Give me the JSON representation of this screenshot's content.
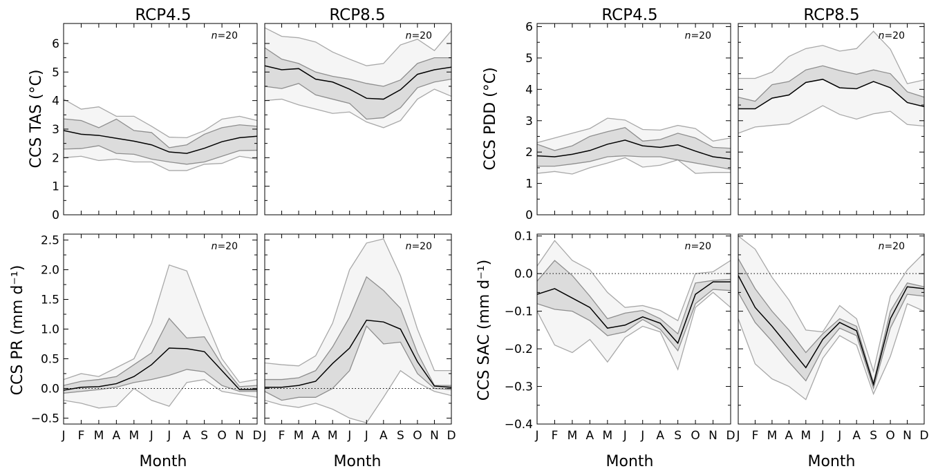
{
  "chart_data": [
    {
      "type": "line",
      "panel": "TAS RCP4.5",
      "title": "RCP4.5",
      "ylabel": "CCS TAS (°C)",
      "xlabel": "",
      "n_label": "n=20",
      "categories": [
        "J",
        "F",
        "M",
        "A",
        "M",
        "J",
        "J",
        "A",
        "S",
        "O",
        "N",
        "D"
      ],
      "ylim": [
        0,
        6.7
      ],
      "yticks": [
        0,
        1,
        2,
        3,
        4,
        5,
        6
      ],
      "ytick_labels": [
        "0",
        "1",
        "2",
        "3",
        "4",
        "5",
        "6"
      ],
      "hline": null,
      "series": [
        {
          "role": "median",
          "values": [
            2.95,
            2.82,
            2.78,
            2.68,
            2.58,
            2.45,
            2.2,
            2.15,
            2.33,
            2.56,
            2.7,
            2.75
          ]
        },
        {
          "role": "inner_band",
          "upper": [
            3.36,
            3.3,
            3.05,
            3.35,
            2.95,
            2.88,
            2.35,
            2.45,
            2.82,
            3.05,
            3.15,
            3.1
          ],
          "lower": [
            2.3,
            2.32,
            2.42,
            2.15,
            2.12,
            1.95,
            1.85,
            1.77,
            1.85,
            2.05,
            2.25,
            2.26
          ]
        },
        {
          "role": "outer_band",
          "upper": [
            4.05,
            3.7,
            3.78,
            3.45,
            3.45,
            3.1,
            2.72,
            2.7,
            2.95,
            3.35,
            3.45,
            3.3
          ],
          "lower": [
            2.0,
            2.05,
            1.9,
            1.95,
            1.85,
            1.85,
            1.55,
            1.55,
            1.77,
            1.8,
            2.05,
            1.95
          ]
        }
      ]
    },
    {
      "type": "line",
      "panel": "TAS RCP8.5",
      "title": "RCP8.5",
      "ylabel": "",
      "xlabel": "",
      "n_label": "n=20",
      "categories": [
        "J",
        "F",
        "M",
        "A",
        "M",
        "J",
        "J",
        "A",
        "S",
        "O",
        "N",
        "D"
      ],
      "ylim": [
        0,
        6.7
      ],
      "yticks": [
        0,
        1,
        2,
        3,
        4,
        5,
        6
      ],
      "ytick_labels": [],
      "hline": null,
      "series": [
        {
          "role": "median",
          "values": [
            5.22,
            5.08,
            5.12,
            4.75,
            4.65,
            4.4,
            4.08,
            4.05,
            4.38,
            4.92,
            5.08,
            5.17
          ]
        },
        {
          "role": "inner_band",
          "upper": [
            5.85,
            5.45,
            5.3,
            5.0,
            4.85,
            4.75,
            4.6,
            4.5,
            4.72,
            5.3,
            5.5,
            5.5
          ],
          "lower": [
            4.5,
            4.42,
            4.6,
            4.2,
            4.05,
            3.9,
            3.35,
            3.4,
            3.75,
            4.45,
            4.65,
            4.75
          ]
        },
        {
          "role": "outer_band",
          "upper": [
            6.55,
            6.25,
            6.2,
            6.05,
            5.7,
            5.45,
            5.22,
            5.3,
            5.95,
            6.15,
            5.75,
            6.45
          ],
          "lower": [
            4.0,
            4.05,
            3.85,
            3.7,
            3.55,
            3.6,
            3.25,
            3.05,
            3.3,
            4.05,
            4.4,
            4.15
          ]
        }
      ]
    },
    {
      "type": "line",
      "panel": "PR RCP4.5",
      "title": "",
      "ylabel": "CCS PR (mm d⁻¹)",
      "xlabel": "Month",
      "n_label": "n=20",
      "categories": [
        "J",
        "F",
        "M",
        "A",
        "M",
        "J",
        "J",
        "A",
        "S",
        "O",
        "N",
        "D"
      ],
      "ylim": [
        -0.6,
        2.6
      ],
      "yticks": [
        -0.5,
        0.0,
        0.5,
        1.0,
        1.5,
        2.0,
        2.5
      ],
      "ytick_labels": [
        "−0.5",
        "0.0",
        "0.5",
        "1.0",
        "1.5",
        "2.0",
        "2.5"
      ],
      "hline": 0,
      "series": [
        {
          "role": "median",
          "values": [
            -0.03,
            0.02,
            0.03,
            0.08,
            0.2,
            0.4,
            0.68,
            0.67,
            0.62,
            0.3,
            -0.02,
            -0.02
          ]
        },
        {
          "role": "inner_band",
          "upper": [
            0.05,
            0.12,
            0.15,
            0.2,
            0.4,
            0.6,
            1.18,
            0.85,
            0.87,
            0.4,
            0.03,
            0.05
          ],
          "lower": [
            -0.08,
            -0.05,
            -0.02,
            0.02,
            0.1,
            0.15,
            0.22,
            0.32,
            0.28,
            0.05,
            -0.05,
            -0.05
          ]
        },
        {
          "role": "outer_band",
          "upper": [
            0.15,
            0.25,
            0.2,
            0.35,
            0.5,
            1.1,
            2.08,
            1.98,
            1.2,
            0.5,
            0.1,
            0.15
          ],
          "lower": [
            -0.2,
            -0.25,
            -0.33,
            -0.3,
            0.0,
            -0.2,
            -0.3,
            0.1,
            0.15,
            -0.05,
            -0.1,
            -0.15
          ]
        }
      ]
    },
    {
      "type": "line",
      "panel": "PR RCP8.5",
      "title": "",
      "ylabel": "",
      "xlabel": "Month",
      "n_label": "n=20",
      "categories": [
        "J",
        "F",
        "M",
        "A",
        "M",
        "J",
        "J",
        "A",
        "S",
        "O",
        "N",
        "D"
      ],
      "ylim": [
        -0.6,
        2.6
      ],
      "yticks": [
        -0.5,
        0.0,
        0.5,
        1.0,
        1.5,
        2.0,
        2.5
      ],
      "ytick_labels": [],
      "hline": 0,
      "series": [
        {
          "role": "median",
          "values": [
            0.02,
            0.02,
            0.05,
            0.12,
            0.42,
            0.68,
            1.15,
            1.12,
            1.0,
            0.45,
            0.04,
            0.02
          ]
        },
        {
          "role": "inner_band",
          "upper": [
            0.15,
            0.15,
            0.18,
            0.3,
            0.7,
            1.2,
            1.88,
            1.65,
            1.35,
            0.6,
            0.05,
            0.05
          ],
          "lower": [
            -0.05,
            -0.2,
            -0.15,
            -0.15,
            0.0,
            0.3,
            1.05,
            0.75,
            0.78,
            0.25,
            0.0,
            -0.02
          ]
        },
        {
          "role": "outer_band",
          "upper": [
            0.43,
            0.4,
            0.38,
            0.55,
            1.1,
            2.0,
            2.45,
            2.52,
            1.9,
            1.0,
            0.3,
            0.3
          ],
          "lower": [
            -0.2,
            -0.28,
            -0.32,
            -0.25,
            -0.35,
            -0.5,
            -0.58,
            -0.15,
            0.3,
            0.1,
            -0.05,
            -0.12
          ]
        }
      ]
    },
    {
      "type": "line",
      "panel": "PDD RCP4.5",
      "title": "RCP4.5",
      "ylabel": "CCS PDD (°C)",
      "xlabel": "",
      "n_label": "n=20",
      "categories": [
        "J",
        "F",
        "M",
        "A",
        "M",
        "J",
        "J",
        "A",
        "S",
        "O",
        "N",
        "D"
      ],
      "ylim": [
        0,
        6.1
      ],
      "yticks": [
        0,
        1,
        2,
        3,
        4,
        5,
        6
      ],
      "ytick_labels": [
        "0",
        "1",
        "2",
        "3",
        "4",
        "5",
        "6"
      ],
      "hline": null,
      "series": [
        {
          "role": "median",
          "values": [
            1.88,
            1.85,
            1.93,
            2.05,
            2.25,
            2.38,
            2.2,
            2.15,
            2.23,
            2.03,
            1.85,
            1.78
          ]
        },
        {
          "role": "inner_band",
          "upper": [
            2.25,
            2.05,
            2.2,
            2.5,
            2.65,
            2.78,
            2.35,
            2.4,
            2.6,
            2.45,
            2.15,
            2.12
          ],
          "lower": [
            1.55,
            1.55,
            1.62,
            1.7,
            1.85,
            1.88,
            1.85,
            1.85,
            1.75,
            1.65,
            1.55,
            1.45
          ]
        },
        {
          "role": "outer_band",
          "upper": [
            2.3,
            2.45,
            2.6,
            2.75,
            3.08,
            3.02,
            2.72,
            2.7,
            2.85,
            2.75,
            2.35,
            2.45
          ],
          "lower": [
            1.32,
            1.38,
            1.3,
            1.5,
            1.65,
            1.82,
            1.52,
            1.58,
            1.75,
            1.32,
            1.35,
            1.35
          ]
        }
      ]
    },
    {
      "type": "line",
      "panel": "PDD RCP8.5",
      "title": "RCP8.5",
      "ylabel": "",
      "xlabel": "",
      "n_label": "n=20",
      "categories": [
        "J",
        "F",
        "M",
        "A",
        "M",
        "J",
        "J",
        "A",
        "S",
        "O",
        "N",
        "D"
      ],
      "ylim": [
        0,
        6.1
      ],
      "yticks": [
        0,
        1,
        2,
        3,
        4,
        5,
        6
      ],
      "ytick_labels": [],
      "hline": null,
      "series": [
        {
          "role": "median",
          "values": [
            3.38,
            3.38,
            3.72,
            3.82,
            4.22,
            4.32,
            4.05,
            4.02,
            4.25,
            4.05,
            3.58,
            3.45
          ]
        },
        {
          "role": "inner_band",
          "upper": [
            3.75,
            3.62,
            4.15,
            4.25,
            4.62,
            4.75,
            4.6,
            4.48,
            4.62,
            4.5,
            3.92,
            3.75
          ]
        },
        {
          "role": "outer_band",
          "upper": [
            4.35,
            4.35,
            4.55,
            5.05,
            5.3,
            5.4,
            5.22,
            5.3,
            5.85,
            5.28,
            4.18,
            4.3
          ],
          "lower": [
            2.6,
            2.8,
            2.85,
            2.9,
            3.18,
            3.48,
            3.2,
            3.05,
            3.22,
            3.3,
            2.88,
            2.83
          ]
        }
      ]
    },
    {
      "type": "line",
      "panel": "SAC RCP4.5",
      "title": "",
      "ylabel": "CCS SAC (mm d⁻¹)",
      "xlabel": "Month",
      "n_label": "n=20",
      "categories": [
        "J",
        "F",
        "M",
        "A",
        "M",
        "J",
        "J",
        "A",
        "S",
        "O",
        "N",
        "D"
      ],
      "ylim": [
        -0.4,
        0.105
      ],
      "yticks": [
        -0.4,
        -0.3,
        -0.2,
        -0.1,
        0.0,
        0.1
      ],
      "ytick_labels": [
        "−0.4",
        "−0.3",
        "−0.2",
        "−0.1",
        "0.0",
        "0.1"
      ],
      "hline": 0,
      "series": [
        {
          "role": "median",
          "values": [
            -0.055,
            -0.04,
            -0.065,
            -0.09,
            -0.145,
            -0.137,
            -0.115,
            -0.132,
            -0.185,
            -0.055,
            -0.022,
            -0.022
          ]
        },
        {
          "role": "inner_band",
          "upper": [
            -0.02,
            0.035,
            -0.005,
            -0.06,
            -0.12,
            -0.105,
            -0.098,
            -0.12,
            -0.16,
            -0.025,
            -0.018,
            -0.015
          ],
          "lower": [
            -0.08,
            -0.095,
            -0.1,
            -0.125,
            -0.165,
            -0.155,
            -0.122,
            -0.148,
            -0.205,
            -0.08,
            -0.042,
            -0.045
          ]
        },
        {
          "role": "outer_band",
          "upper": [
            0.02,
            0.088,
            0.035,
            0.01,
            -0.05,
            -0.09,
            -0.085,
            -0.098,
            -0.125,
            0.0,
            0.005,
            0.035
          ],
          "lower": [
            -0.1,
            -0.19,
            -0.21,
            -0.175,
            -0.235,
            -0.17,
            -0.14,
            -0.155,
            -0.255,
            -0.09,
            -0.05,
            -0.09
          ]
        }
      ]
    },
    {
      "type": "line",
      "panel": "SAC RCP8.5",
      "title": "",
      "ylabel": "",
      "xlabel": "Month",
      "n_label": "n=20",
      "categories": [
        "J",
        "F",
        "M",
        "A",
        "M",
        "J",
        "J",
        "A",
        "S",
        "O",
        "N",
        "D"
      ],
      "ylim": [
        -0.4,
        0.105
      ],
      "yticks": [
        -0.4,
        -0.3,
        -0.2,
        -0.1,
        0.0,
        0.1
      ],
      "ytick_labels": [],
      "hline": 0,
      "series": [
        {
          "role": "median",
          "values": [
            -0.005,
            -0.09,
            -0.14,
            -0.195,
            -0.25,
            -0.175,
            -0.13,
            -0.152,
            -0.295,
            -0.12,
            -0.035,
            -0.04
          ]
        },
        {
          "role": "inner_band",
          "upper": [
            0.04,
            -0.04,
            -0.1,
            -0.15,
            -0.21,
            -0.16,
            -0.12,
            -0.14,
            -0.29,
            -0.1,
            -0.025,
            -0.035
          ],
          "lower": [
            -0.05,
            -0.13,
            -0.18,
            -0.235,
            -0.285,
            -0.2,
            -0.145,
            -0.165,
            -0.305,
            -0.145,
            -0.055,
            -0.06
          ]
        },
        {
          "role": "outer_band",
          "upper": [
            0.1,
            0.065,
            -0.01,
            -0.07,
            -0.15,
            -0.155,
            -0.085,
            -0.12,
            -0.26,
            -0.06,
            0.01,
            0.055
          ],
          "lower": [
            -0.12,
            -0.24,
            -0.28,
            -0.3,
            -0.335,
            -0.225,
            -0.165,
            -0.19,
            -0.32,
            -0.22,
            -0.08,
            -0.1
          ]
        }
      ]
    }
  ]
}
